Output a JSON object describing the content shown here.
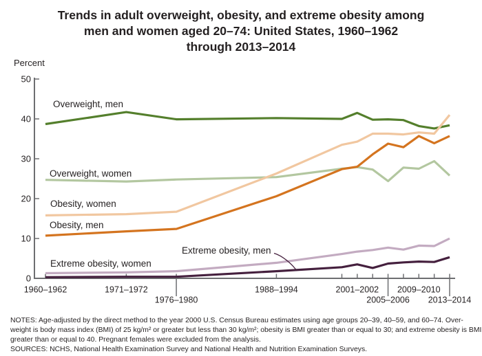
{
  "title": {
    "line1": "Trends in adult overweight, obesity, and extreme obesity among",
    "line2": "men and women aged 20–74: United States, 1960–1962",
    "line3": "through 2013–2014"
  },
  "series_labels": {
    "overweight_men": "Overweight, men",
    "overweight_women": "Overweight, women",
    "obesity_women": "Obesity, women",
    "obesity_men": "Obesity, men",
    "extreme_obesity_women": "Extreme obesity, women",
    "extreme_obesity_men": "Extreme obesity, men"
  },
  "chart_data": {
    "type": "line",
    "title": "Trends in adult overweight, obesity, and extreme obesity among men and women aged 20–74: United States, 1960–1962 through 2013–2014",
    "ylabel": "Percent",
    "ylim": [
      0,
      50
    ],
    "yticks": [
      0,
      10,
      20,
      30,
      40,
      50
    ],
    "grid": false,
    "legend_position": "inline-labels",
    "x_mid_years": [
      1961,
      1971.5,
      1978,
      1991,
      1999.5,
      2001.5,
      2003.5,
      2005.5,
      2007.5,
      2009.5,
      2011.5,
      2013.5
    ],
    "x_tick_labels": [
      {
        "label": "1960–1962",
        "year": 1961,
        "row": 1
      },
      {
        "label": "1971–1972",
        "year": 1971.5,
        "row": 1
      },
      {
        "label": "1976–1980",
        "year": 1978,
        "row": 2
      },
      {
        "label": "1988–1994",
        "year": 1991,
        "row": 1
      },
      {
        "label": "2001–2002",
        "year": 2001.5,
        "row": 1
      },
      {
        "label": "2005–2006",
        "year": 2005.5,
        "row": 2
      },
      {
        "label": "2009–2010",
        "year": 2009.5,
        "row": 1
      },
      {
        "label": "2013–2014",
        "year": 2013.5,
        "row": 2
      }
    ],
    "series": [
      {
        "key": "overweight_women",
        "name": "Overweight, women",
        "color": "#b3c7a0",
        "values": [
          24.7,
          24.3,
          24.8,
          25.4,
          27.5,
          27.9,
          27.3,
          24.4,
          27.8,
          27.5,
          29.4,
          25.8
        ]
      },
      {
        "key": "overweight_men",
        "name": "Overweight, men",
        "color": "#547f2c",
        "values": [
          38.7,
          41.7,
          39.9,
          40.2,
          40.0,
          41.5,
          39.8,
          39.9,
          39.7,
          38.2,
          37.6,
          38.4
        ]
      },
      {
        "key": "obesity_men",
        "name": "Obesity, men",
        "color": "#d4741f",
        "values": [
          10.7,
          11.8,
          12.4,
          20.6,
          27.4,
          28.0,
          31.1,
          33.8,
          32.9,
          35.7,
          33.9,
          35.7
        ]
      },
      {
        "key": "obesity_women",
        "name": "Obesity, women",
        "color": "#f1c7a0",
        "values": [
          15.8,
          16.1,
          16.7,
          26.3,
          33.5,
          34.3,
          36.3,
          36.3,
          36.1,
          36.6,
          36.3,
          41.0
        ]
      },
      {
        "key": "extreme_obesity_women",
        "name": "Extreme obesity, women",
        "color": "#c3abc1",
        "values": [
          1.3,
          1.5,
          1.8,
          3.9,
          6.1,
          6.7,
          7.1,
          7.7,
          7.2,
          8.2,
          8.1,
          10.0
        ]
      },
      {
        "key": "extreme_obesity_men",
        "name": "Extreme obesity, men",
        "color": "#45203e",
        "values": [
          0.3,
          0.4,
          0.4,
          1.8,
          2.8,
          3.5,
          2.6,
          3.7,
          4.0,
          4.2,
          4.1,
          5.3
        ]
      }
    ]
  },
  "notes": {
    "line1": "NOTES: Age-adjusted by the direct method to the year 2000 U.S. Census Bureau estimates using age groups 20–39, 40–59, and 60–74. Over-",
    "line2": "weight is body mass index (BMI) of 25 kg/m² or greater but less than 30 kg/m²; obesity is BMI greater than or equal to 30; and extreme obesity is BMI",
    "line3": "greater than or equal to 40. Pregnant females were excluded from the analysis.",
    "sources": "SOURCES: NCHS, National Health Examination Survey and National Health and Nutrition Examination Surveys."
  },
  "colors": {
    "axis": "#6d6e71",
    "text": "#231f20"
  }
}
